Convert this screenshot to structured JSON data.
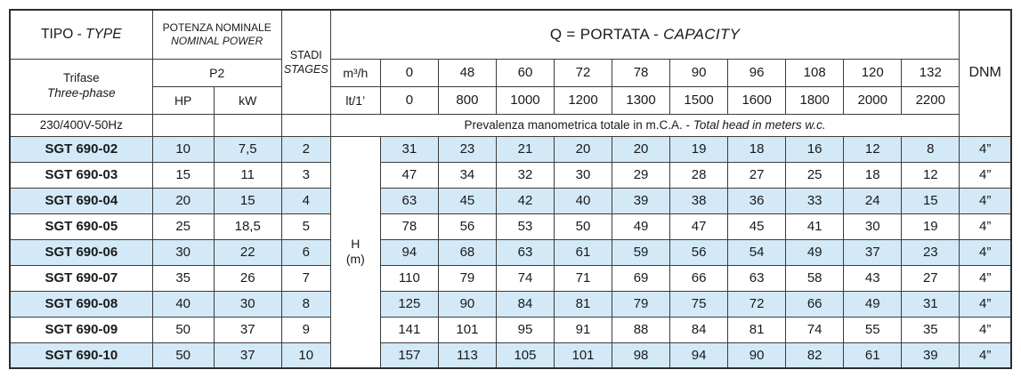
{
  "colors": {
    "row_alt": "#d3e9f8",
    "border": "#3c3c3c"
  },
  "header": {
    "tipo_main": "TIPO - ",
    "tipo_italic": "TYPE",
    "potenza_line1": "POTENZA NOMINALE",
    "potenza_line2": "NOMINAL POWER",
    "p2": "P2",
    "hp": "HP",
    "kw": "kW",
    "stadi": "STADI",
    "stages": "STAGES",
    "q_main": "Q = PORTATA - ",
    "q_italic": "CAPACITY",
    "dnm": "DNM",
    "trifase": "Trifase",
    "three_phase": "Three-phase",
    "voltage": "230/400V-50Hz",
    "m3h_label": "m³/h",
    "lt_label": "lt/1’",
    "m3h_values": [
      "0",
      "48",
      "60",
      "72",
      "78",
      "90",
      "96",
      "108",
      "120",
      "132"
    ],
    "lt_values": [
      "0",
      "800",
      "1000",
      "1200",
      "1300",
      "1500",
      "1600",
      "1800",
      "2000",
      "2200"
    ],
    "prevalenza_main": "Prevalenza manometrica totale in m.C.A. - ",
    "prevalenza_italic": "Total head in meters w.c.",
    "h_line1": "H",
    "h_line2": "(m)"
  },
  "rows": [
    {
      "type": "SGT 690-02",
      "hp": "10",
      "kw": "7,5",
      "stages": "2",
      "head": [
        "31",
        "23",
        "21",
        "20",
        "20",
        "19",
        "18",
        "16",
        "12",
        "8"
      ],
      "dnm": "4”"
    },
    {
      "type": "SGT 690-03",
      "hp": "15",
      "kw": "11",
      "stages": "3",
      "head": [
        "47",
        "34",
        "32",
        "30",
        "29",
        "28",
        "27",
        "25",
        "18",
        "12"
      ],
      "dnm": "4”"
    },
    {
      "type": "SGT 690-04",
      "hp": "20",
      "kw": "15",
      "stages": "4",
      "head": [
        "63",
        "45",
        "42",
        "40",
        "39",
        "38",
        "36",
        "33",
        "24",
        "15"
      ],
      "dnm": "4”"
    },
    {
      "type": "SGT 690-05",
      "hp": "25",
      "kw": "18,5",
      "stages": "5",
      "head": [
        "78",
        "56",
        "53",
        "50",
        "49",
        "47",
        "45",
        "41",
        "30",
        "19"
      ],
      "dnm": "4”"
    },
    {
      "type": "SGT 690-06",
      "hp": "30",
      "kw": "22",
      "stages": "6",
      "head": [
        "94",
        "68",
        "63",
        "61",
        "59",
        "56",
        "54",
        "49",
        "37",
        "23"
      ],
      "dnm": "4”"
    },
    {
      "type": "SGT 690-07",
      "hp": "35",
      "kw": "26",
      "stages": "7",
      "head": [
        "110",
        "79",
        "74",
        "71",
        "69",
        "66",
        "63",
        "58",
        "43",
        "27"
      ],
      "dnm": "4”"
    },
    {
      "type": "SGT 690-08",
      "hp": "40",
      "kw": "30",
      "stages": "8",
      "head": [
        "125",
        "90",
        "84",
        "81",
        "79",
        "75",
        "72",
        "66",
        "49",
        "31"
      ],
      "dnm": "4”"
    },
    {
      "type": "SGT 690-09",
      "hp": "50",
      "kw": "37",
      "stages": "9",
      "head": [
        "141",
        "101",
        "95",
        "91",
        "88",
        "84",
        "81",
        "74",
        "55",
        "35"
      ],
      "dnm": "4”"
    },
    {
      "type": "SGT 690-10",
      "hp": "50",
      "kw": "37",
      "stages": "10",
      "head": [
        "157",
        "113",
        "105",
        "101",
        "98",
        "94",
        "90",
        "82",
        "61",
        "39"
      ],
      "dnm": "4”"
    }
  ]
}
